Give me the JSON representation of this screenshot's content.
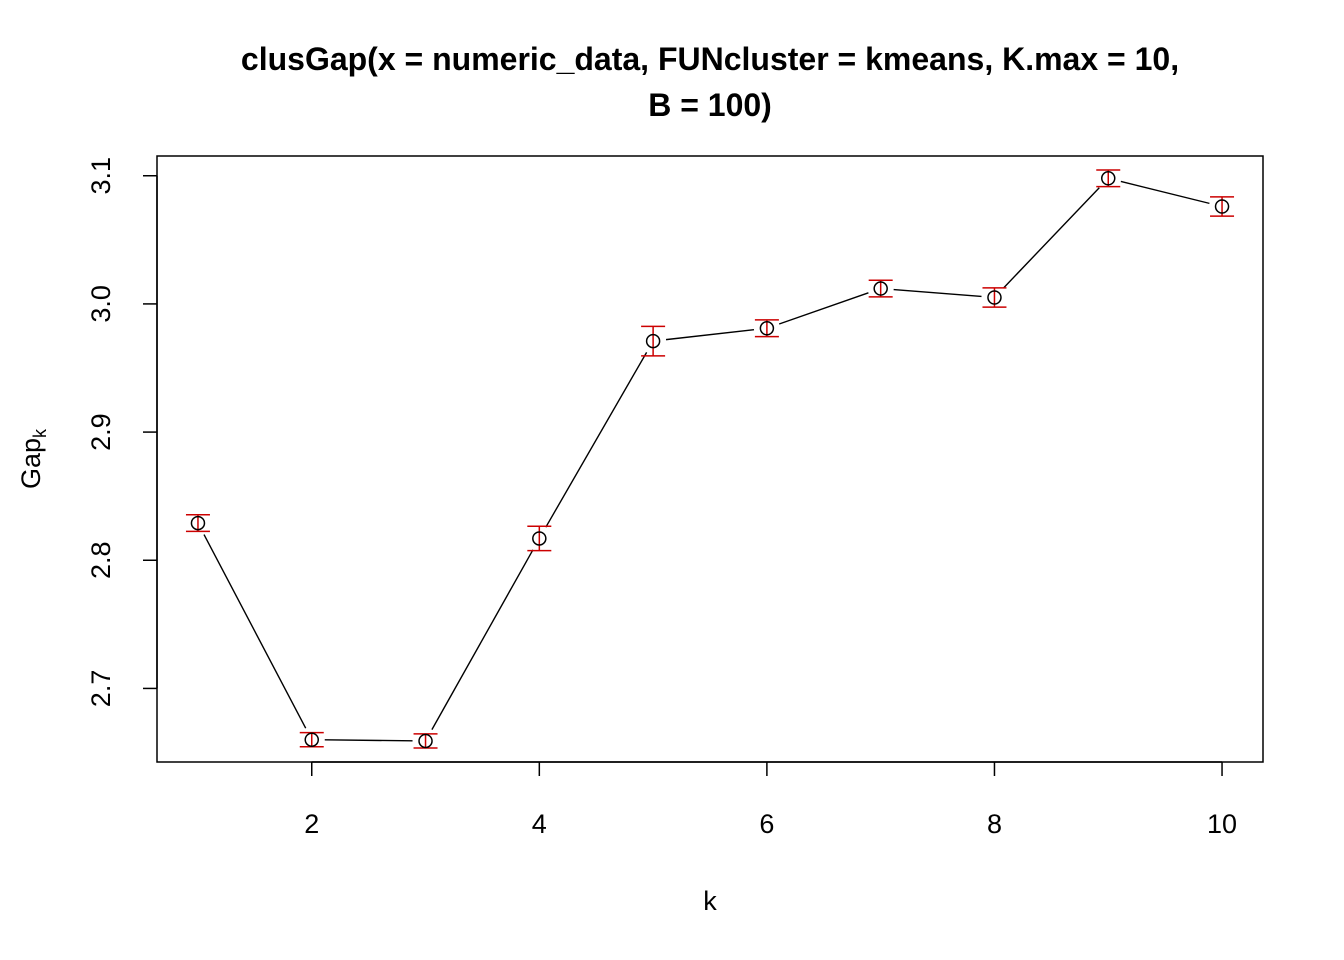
{
  "chart_data": {
    "type": "scatter",
    "title_line1": "clusGap(x = numeric_data, FUNcluster = kmeans, K.max = 10,",
    "title_line2": "B = 100)",
    "xlabel": "k",
    "ylabel_main": "Gap",
    "ylabel_sub": "k",
    "xlim": [
      0.64,
      10.36
    ],
    "ylim": [
      2.6426,
      3.1154
    ],
    "x_ticks": [
      2,
      4,
      6,
      8,
      10
    ],
    "x_tick_labels": [
      "2",
      "4",
      "6",
      "8",
      "10"
    ],
    "y_ticks": [
      2.7,
      2.8,
      2.9,
      3.0,
      3.1
    ],
    "y_tick_labels": [
      "2.7",
      "2.8",
      "2.9",
      "3.0",
      "3.1"
    ],
    "series": [
      {
        "x": [
          1,
          2,
          3,
          4,
          5,
          6,
          7,
          8,
          9,
          10
        ],
        "y": [
          2.829,
          2.66,
          2.659,
          2.817,
          2.971,
          2.981,
          3.012,
          3.005,
          3.098,
          3.076
        ],
        "se": [
          0.0065,
          0.0055,
          0.0055,
          0.0095,
          0.0115,
          0.0065,
          0.0065,
          0.0075,
          0.0065,
          0.0075
        ]
      }
    ],
    "colors": {
      "line": "#000000",
      "points": "#000000",
      "error_bars": "#cc0000"
    },
    "grid": false,
    "legend": "none"
  }
}
